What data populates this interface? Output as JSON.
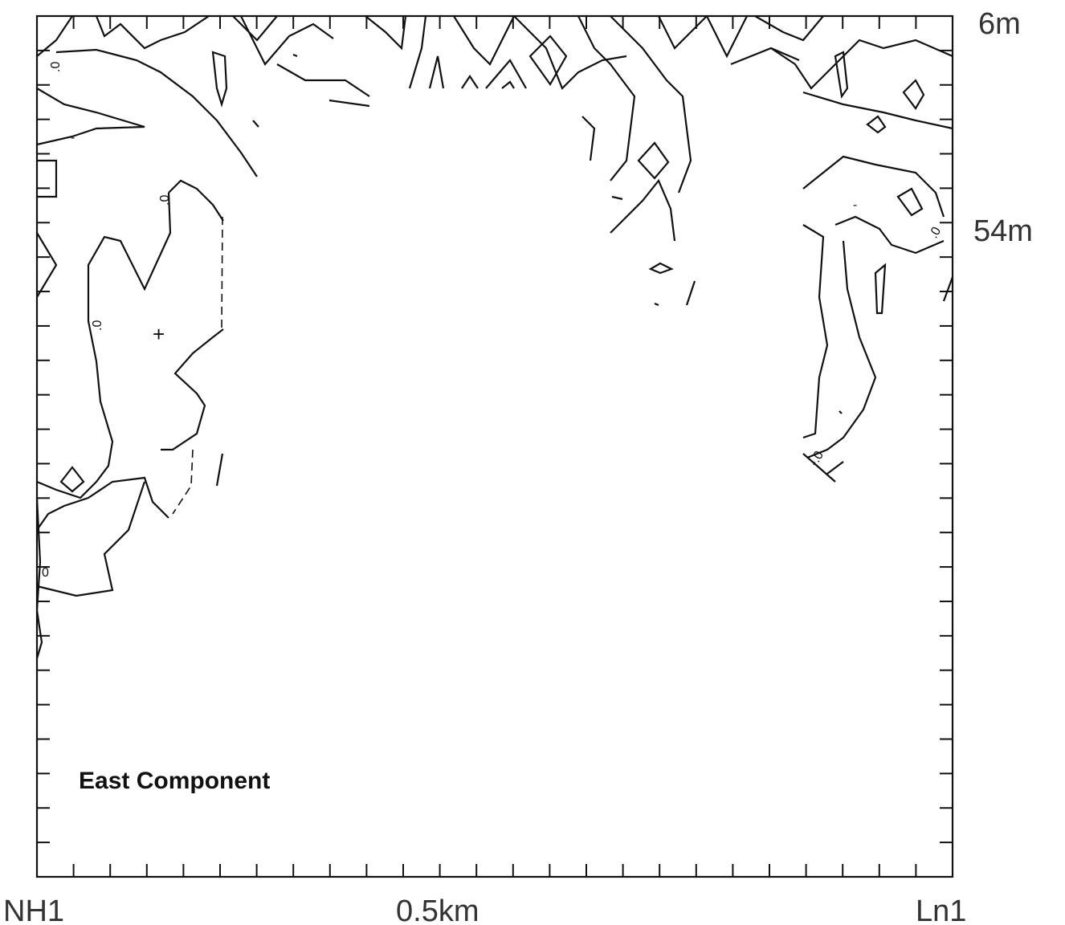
{
  "chart_data": {
    "type": "contour",
    "title": "East Component",
    "x_labels": {
      "left": "NH1",
      "middle": "0.5km",
      "right": "Ln1"
    },
    "y_labels": {
      "top": "6m",
      "upper": "54m"
    },
    "grid": false,
    "ticks": {
      "x_count": 25,
      "y_count": 25
    },
    "contour_level_labels": [
      ".0",
      ".0",
      ".0",
      "0",
      "-.0",
      ".0",
      "-",
      "-",
      "+"
    ],
    "colors": {
      "line": "#111111",
      "background": "#ffffff"
    }
  }
}
